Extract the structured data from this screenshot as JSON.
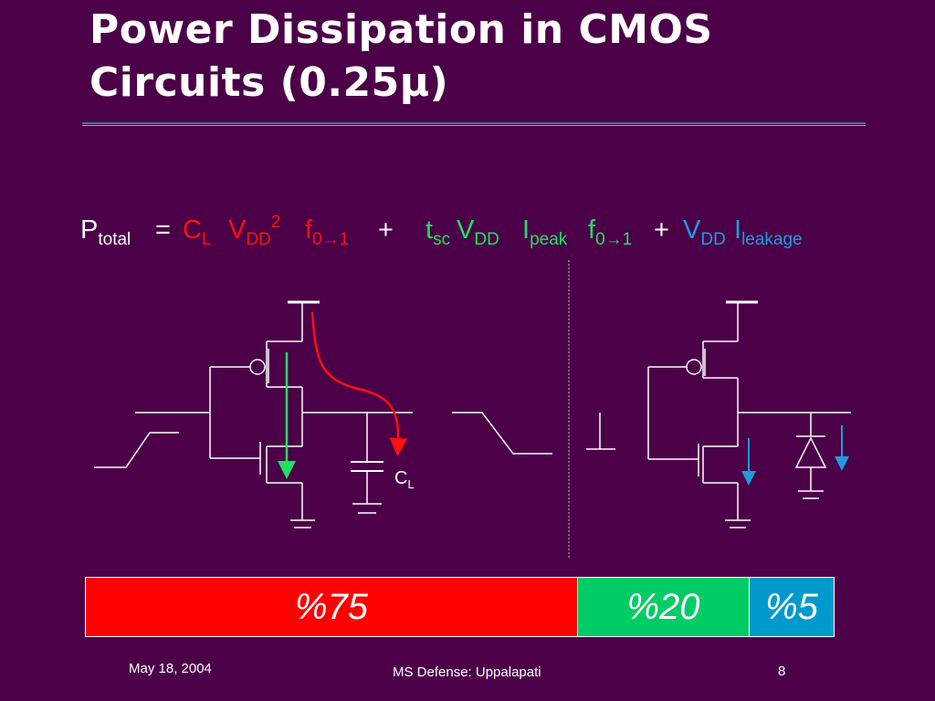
{
  "slide": {
    "title_line1": "Power Dissipation in CMOS",
    "title_line2": "Circuits (0.25µ)",
    "colors": {
      "background": "#4b0048",
      "dynamic": "#ff0000",
      "short_circuit": "#00cc66",
      "leakage": "#0099cc"
    }
  },
  "formula": {
    "p": "P",
    "p_sub": "total",
    "eq": "=",
    "cl": "C",
    "cl_sub": "L",
    "vdd1": "V",
    "vdd1_sub": "DD",
    "vdd1_sup": "2",
    "f1": "f",
    "f1_sub": "0→1",
    "plus1": "+",
    "t": "t",
    "t_sub": "sc",
    "vdd2": "V",
    "vdd2_sub": "DD",
    "ipeak": "I",
    "ipeak_sub": "peak",
    "f2": "f",
    "f2_sub": "0→1",
    "plus2": "+",
    "vdd3": "V",
    "vdd3_sub": "DD",
    "ileak": "I",
    "ileak_sub": "leakage"
  },
  "circuit": {
    "cap_label": "C",
    "cap_label_sub": "L"
  },
  "breakdown": {
    "segments": [
      {
        "label": "%75",
        "share": 0.75,
        "color": "#ff0000"
      },
      {
        "label": "%20",
        "share": 0.2,
        "color": "#00cc66"
      },
      {
        "label": "%5",
        "share": 0.05,
        "color": "#0099cc"
      }
    ]
  },
  "footer": {
    "date": "May 18, 2004",
    "center": "MS Defense: Uppalapati",
    "page": "8"
  }
}
